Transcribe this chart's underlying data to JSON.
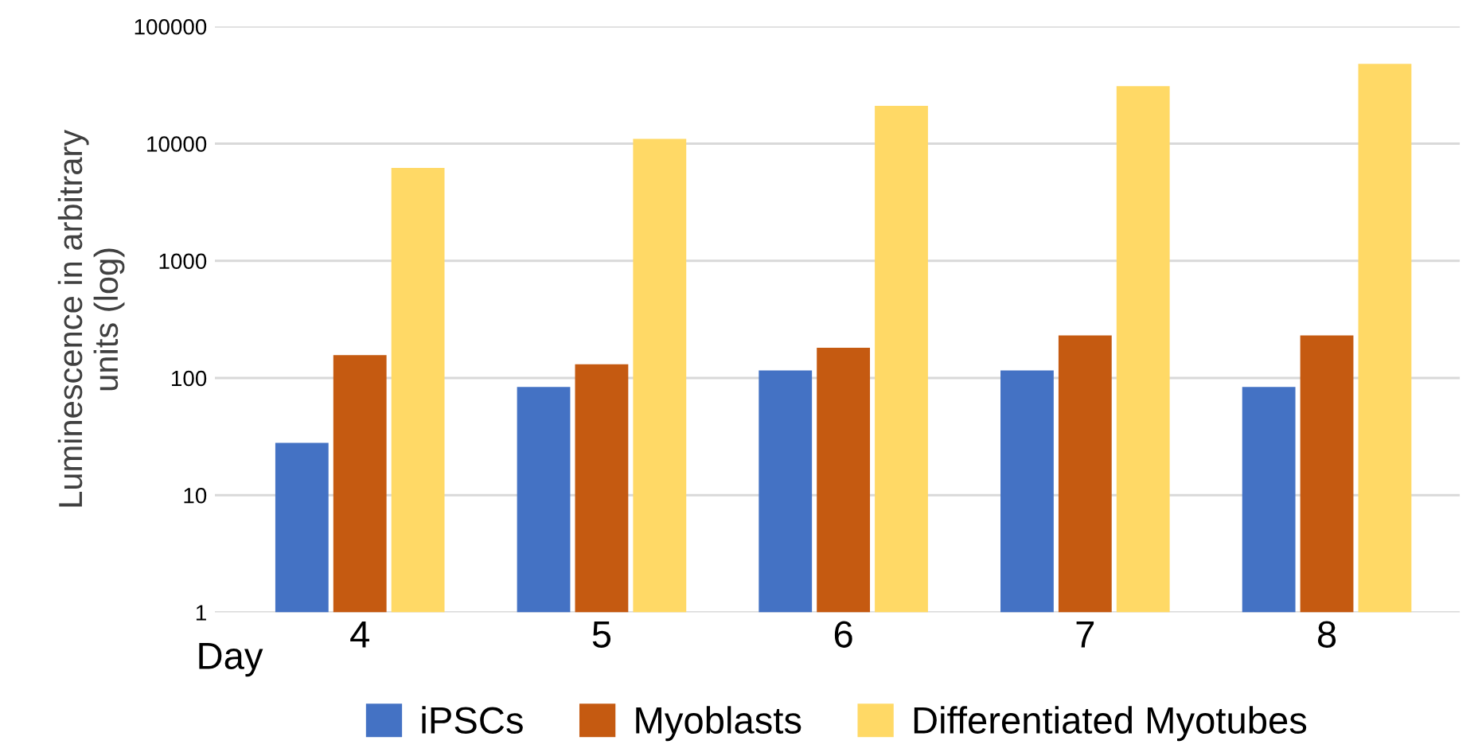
{
  "chart_data": {
    "type": "bar",
    "ylabel": "Luminescence in arbitrary\nunits (log)",
    "xlabel": "Day",
    "categories": [
      "4",
      "5",
      "6",
      "7",
      "8"
    ],
    "series": [
      {
        "name": "iPSCs",
        "color": "#4472c4",
        "values": [
          27,
          83,
          115,
          115,
          83
        ]
      },
      {
        "name": "Myoblasts",
        "color": "#c55a11",
        "values": [
          156,
          130,
          180,
          230,
          230
        ]
      },
      {
        "name": "Differentiated Myotubes",
        "color": "#ffd966",
        "values": [
          6200,
          11000,
          21000,
          31000,
          48000
        ]
      }
    ],
    "log": "y",
    "ylim": [
      1,
      100000
    ],
    "yticks": [
      1,
      10,
      100,
      1000,
      10000,
      100000
    ],
    "grid": "y",
    "legend": "bottom"
  }
}
